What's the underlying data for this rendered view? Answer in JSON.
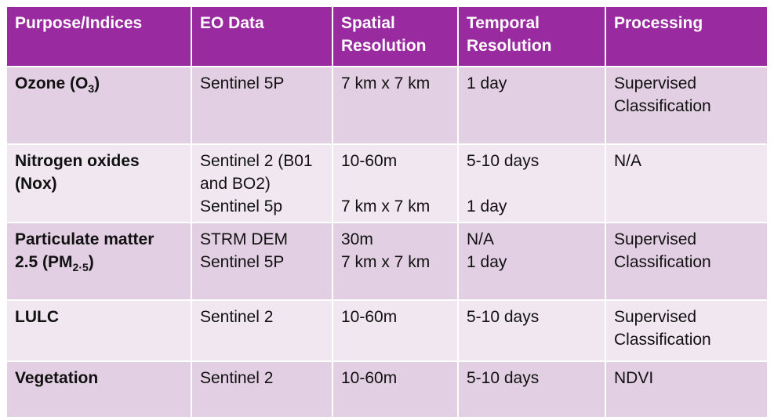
{
  "headers": [
    "Purpose/Indices",
    "EO Data",
    "Spatial Resolution",
    "Temporal Resolution",
    "Processing"
  ],
  "rows": [
    {
      "purpose": {
        "text": "Ozone (O",
        "sub": "3",
        "tail": ")"
      },
      "eo_data": [
        "Sentinel 5P"
      ],
      "spatial": [
        "7 km x 7 km"
      ],
      "temporal": [
        "1 day"
      ],
      "processing": [
        "Supervised",
        "Classification"
      ]
    },
    {
      "purpose": {
        "line1": "Nitrogen oxides",
        "line2": "(Nox)"
      },
      "eo_data": [
        "Sentinel 2 (B01",
        "and BO2)",
        "Sentinel 5p"
      ],
      "spatial": [
        "10-60m",
        "",
        "7 km x 7 km"
      ],
      "temporal": [
        "5-10 days",
        "",
        "1 day"
      ],
      "processing": [
        "N/A"
      ]
    },
    {
      "purpose": {
        "line1": "Particulate matter",
        "line2_pre": "2.5 (PM",
        "sub": "2·5",
        "tail": ")"
      },
      "eo_data": [
        "STRM DEM",
        "Sentinel 5P"
      ],
      "spatial": [
        "30m",
        "7 km x 7 km"
      ],
      "temporal": [
        "N/A",
        "1 day"
      ],
      "processing": [
        "Supervised",
        "Classification"
      ]
    },
    {
      "purpose": {
        "line1": "LULC"
      },
      "eo_data": [
        "Sentinel 2"
      ],
      "spatial": [
        "10-60m"
      ],
      "temporal": [
        "5-10 days"
      ],
      "processing": [
        "Supervised",
        "Classification"
      ]
    },
    {
      "purpose": {
        "line1": "Vegetation"
      },
      "eo_data": [
        "Sentinel 2"
      ],
      "spatial": [
        "10-60m"
      ],
      "temporal": [
        "5-10 days"
      ],
      "processing": [
        "NDVI"
      ]
    }
  ]
}
